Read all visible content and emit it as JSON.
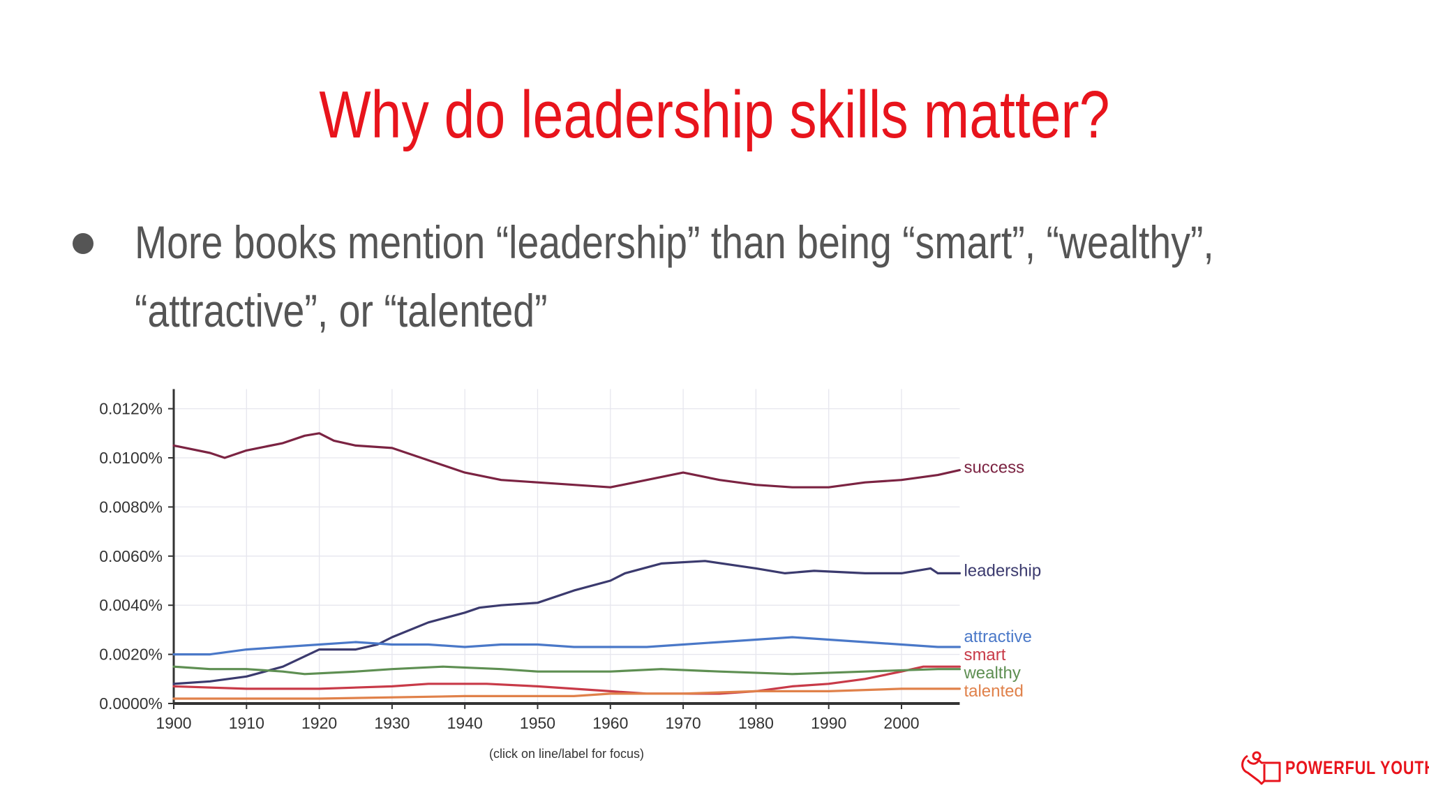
{
  "slide": {
    "title": "Why do leadership skills matter?",
    "bullet_line1": "More books mention “leadership” than being “smart”, “wealthy”,",
    "bullet_line2": "“attractive”, or “talented”",
    "logo_text": "POWERFUL YOUTH",
    "accent_color": "#e8141c"
  },
  "chart_data": {
    "type": "line",
    "title": "",
    "xlabel": "",
    "ylabel": "",
    "note": "(click on line/label for focus)",
    "xlim": [
      1900,
      2008
    ],
    "ylim": [
      0,
      0.0128
    ],
    "x_ticks": [
      1900,
      1910,
      1920,
      1930,
      1940,
      1950,
      1960,
      1970,
      1980,
      1990,
      2000
    ],
    "y_ticks": [
      0,
      0.002,
      0.004,
      0.006,
      0.008,
      0.01,
      0.012
    ],
    "y_tick_labels": [
      "0.0000%",
      "0.0020%",
      "0.0040%",
      "0.0060%",
      "0.0080%",
      "0.0100%",
      "0.0120%"
    ],
    "grid": true,
    "legend": "inline labels at right end of lines",
    "series": [
      {
        "name": "success",
        "color": "#7b2342",
        "points": [
          [
            1900,
            0.0105
          ],
          [
            1905,
            0.0102
          ],
          [
            1907,
            0.01
          ],
          [
            1910,
            0.0103
          ],
          [
            1915,
            0.0106
          ],
          [
            1918,
            0.0109
          ],
          [
            1920,
            0.011
          ],
          [
            1922,
            0.0107
          ],
          [
            1925,
            0.0105
          ],
          [
            1930,
            0.0104
          ],
          [
            1935,
            0.0099
          ],
          [
            1940,
            0.0094
          ],
          [
            1945,
            0.0091
          ],
          [
            1950,
            0.009
          ],
          [
            1955,
            0.0089
          ],
          [
            1960,
            0.0088
          ],
          [
            1965,
            0.0091
          ],
          [
            1970,
            0.0094
          ],
          [
            1975,
            0.0091
          ],
          [
            1980,
            0.0089
          ],
          [
            1985,
            0.0088
          ],
          [
            1990,
            0.0088
          ],
          [
            1995,
            0.009
          ],
          [
            2000,
            0.0091
          ],
          [
            2005,
            0.0093
          ],
          [
            2008,
            0.0095
          ]
        ]
      },
      {
        "name": "leadership",
        "color": "#3b3a6e",
        "points": [
          [
            1900,
            0.0008
          ],
          [
            1905,
            0.0009
          ],
          [
            1910,
            0.0011
          ],
          [
            1915,
            0.0015
          ],
          [
            1920,
            0.0022
          ],
          [
            1925,
            0.0022
          ],
          [
            1928,
            0.0024
          ],
          [
            1930,
            0.0027
          ],
          [
            1935,
            0.0033
          ],
          [
            1940,
            0.0037
          ],
          [
            1942,
            0.0039
          ],
          [
            1945,
            0.004
          ],
          [
            1950,
            0.0041
          ],
          [
            1955,
            0.0046
          ],
          [
            1960,
            0.005
          ],
          [
            1962,
            0.0053
          ],
          [
            1967,
            0.0057
          ],
          [
            1973,
            0.0058
          ],
          [
            1980,
            0.0055
          ],
          [
            1984,
            0.0053
          ],
          [
            1988,
            0.0054
          ],
          [
            1995,
            0.0053
          ],
          [
            2000,
            0.0053
          ],
          [
            2004,
            0.0055
          ],
          [
            2005,
            0.0053
          ],
          [
            2008,
            0.0053
          ]
        ]
      },
      {
        "name": "attractive",
        "color": "#4a78c8",
        "points": [
          [
            1900,
            0.002
          ],
          [
            1905,
            0.002
          ],
          [
            1910,
            0.0022
          ],
          [
            1915,
            0.0023
          ],
          [
            1920,
            0.0024
          ],
          [
            1925,
            0.0025
          ],
          [
            1930,
            0.0024
          ],
          [
            1935,
            0.0024
          ],
          [
            1940,
            0.0023
          ],
          [
            1945,
            0.0024
          ],
          [
            1950,
            0.0024
          ],
          [
            1955,
            0.0023
          ],
          [
            1960,
            0.0023
          ],
          [
            1965,
            0.0023
          ],
          [
            1970,
            0.0024
          ],
          [
            1975,
            0.0025
          ],
          [
            1980,
            0.0026
          ],
          [
            1985,
            0.0027
          ],
          [
            1990,
            0.0026
          ],
          [
            1995,
            0.0025
          ],
          [
            2000,
            0.0024
          ],
          [
            2005,
            0.0023
          ],
          [
            2008,
            0.0023
          ]
        ]
      },
      {
        "name": "smart",
        "color": "#c83a48",
        "points": [
          [
            1900,
            0.0007
          ],
          [
            1910,
            0.0006
          ],
          [
            1920,
            0.0006
          ],
          [
            1930,
            0.0007
          ],
          [
            1935,
            0.0008
          ],
          [
            1943,
            0.0008
          ],
          [
            1950,
            0.0007
          ],
          [
            1955,
            0.0006
          ],
          [
            1960,
            0.0005
          ],
          [
            1965,
            0.0004
          ],
          [
            1970,
            0.0004
          ],
          [
            1975,
            0.0004
          ],
          [
            1980,
            0.0005
          ],
          [
            1985,
            0.0007
          ],
          [
            1990,
            0.0008
          ],
          [
            1995,
            0.001
          ],
          [
            2000,
            0.0013
          ],
          [
            2003,
            0.0015
          ],
          [
            2008,
            0.0015
          ]
        ]
      },
      {
        "name": "wealthy",
        "color": "#5e8f52",
        "points": [
          [
            1900,
            0.0015
          ],
          [
            1905,
            0.0014
          ],
          [
            1910,
            0.0014
          ],
          [
            1915,
            0.0013
          ],
          [
            1918,
            0.0012
          ],
          [
            1925,
            0.0013
          ],
          [
            1930,
            0.0014
          ],
          [
            1937,
            0.0015
          ],
          [
            1945,
            0.0014
          ],
          [
            1950,
            0.0013
          ],
          [
            1960,
            0.0013
          ],
          [
            1967,
            0.0014
          ],
          [
            1975,
            0.0013
          ],
          [
            1985,
            0.0012
          ],
          [
            1995,
            0.0013
          ],
          [
            2005,
            0.0014
          ],
          [
            2008,
            0.0014
          ]
        ]
      },
      {
        "name": "talented",
        "color": "#e0814a",
        "points": [
          [
            1900,
            0.0002
          ],
          [
            1920,
            0.0002
          ],
          [
            1940,
            0.0003
          ],
          [
            1955,
            0.0003
          ],
          [
            1960,
            0.0004
          ],
          [
            1970,
            0.0004
          ],
          [
            1980,
            0.0005
          ],
          [
            1990,
            0.0005
          ],
          [
            2000,
            0.0006
          ],
          [
            2008,
            0.0006
          ]
        ]
      }
    ]
  }
}
